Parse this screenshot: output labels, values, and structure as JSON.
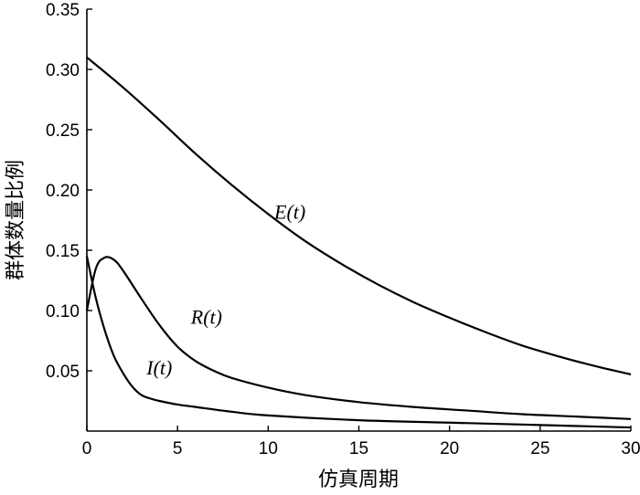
{
  "chart_data": {
    "type": "line",
    "title": "",
    "xlabel": "仿真周期",
    "ylabel": "群体数量比例",
    "xlim": [
      0,
      30
    ],
    "ylim": [
      0,
      0.35
    ],
    "xticks": [
      "0",
      "5",
      "10",
      "15",
      "20",
      "25",
      "30"
    ],
    "yticks": [
      "0.05",
      "0.10",
      "0.15",
      "0.20",
      "0.25",
      "0.30",
      "0.35"
    ],
    "grid": false,
    "series": [
      {
        "name": "E(t)",
        "x": [
          0,
          2,
          4,
          6,
          8,
          10,
          12,
          14,
          16,
          18,
          20,
          22,
          24,
          26,
          28,
          30
        ],
        "y": [
          0.31,
          0.285,
          0.258,
          0.23,
          0.204,
          0.18,
          0.158,
          0.139,
          0.122,
          0.107,
          0.094,
          0.082,
          0.071,
          0.062,
          0.054,
          0.047
        ]
      },
      {
        "name": "R(t)",
        "x": [
          0,
          0.5,
          1,
          1.5,
          2,
          3,
          4,
          5,
          6,
          7,
          8,
          10,
          12,
          15,
          18,
          21,
          24,
          27,
          30
        ],
        "y": [
          0.1,
          0.135,
          0.144,
          0.142,
          0.133,
          0.11,
          0.088,
          0.07,
          0.058,
          0.05,
          0.044,
          0.036,
          0.03,
          0.024,
          0.02,
          0.017,
          0.014,
          0.012,
          0.01
        ]
      },
      {
        "name": "I(t)",
        "x": [
          0,
          0.5,
          1,
          1.5,
          2,
          2.5,
          3,
          3.5,
          4,
          5,
          6,
          8,
          10,
          15,
          20,
          25,
          30
        ],
        "y": [
          0.145,
          0.11,
          0.083,
          0.062,
          0.048,
          0.037,
          0.03,
          0.027,
          0.025,
          0.022,
          0.02,
          0.016,
          0.013,
          0.009,
          0.007,
          0.005,
          0.003
        ]
      }
    ]
  }
}
